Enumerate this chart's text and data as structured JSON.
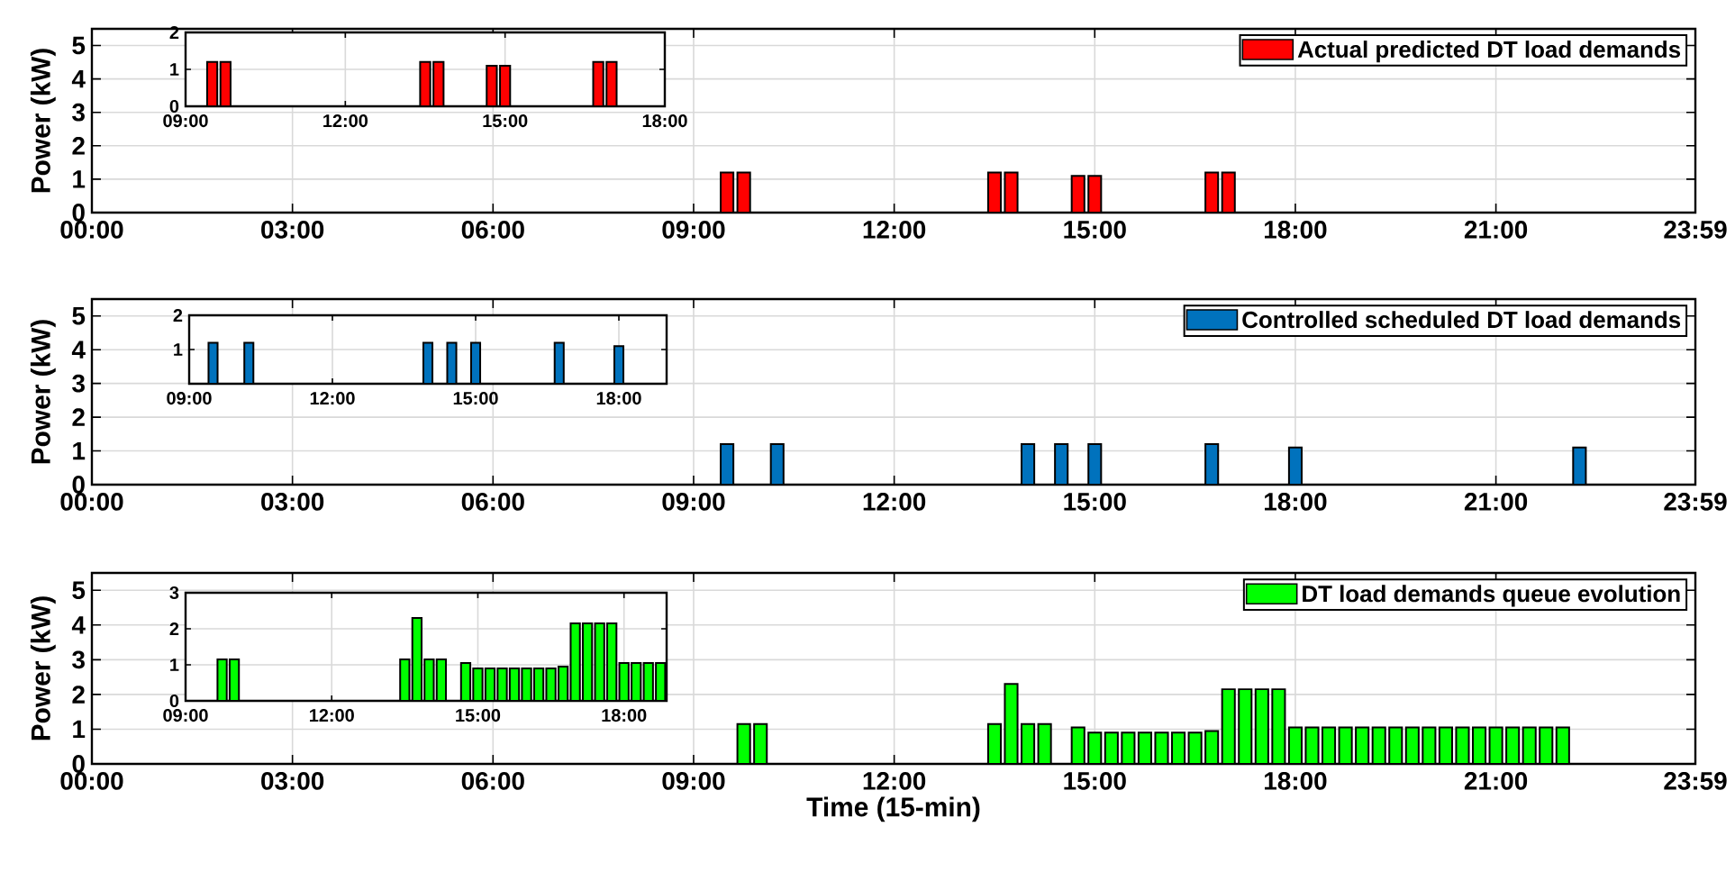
{
  "chart_data": [
    {
      "type": "bar",
      "ylabel": "Power (kW)",
      "x": [
        9.5,
        9.75,
        13.5,
        13.75,
        14.75,
        15.0,
        16.75,
        17.0
      ],
      "series": [
        {
          "name": "Actual predicted DT load demands",
          "color": "#ff0000",
          "values": [
            1.2,
            1.2,
            1.2,
            1.2,
            1.1,
            1.1,
            1.2,
            1.2
          ]
        }
      ],
      "xlim": [
        0,
        23.9833
      ],
      "xticks": [
        {
          "value": 0,
          "label": "00:00"
        },
        {
          "value": 3,
          "label": "03:00"
        },
        {
          "value": 6,
          "label": "06:00"
        },
        {
          "value": 9,
          "label": "09:00"
        },
        {
          "value": 12,
          "label": "12:00"
        },
        {
          "value": 15,
          "label": "15:00"
        },
        {
          "value": 18,
          "label": "18:00"
        },
        {
          "value": 21,
          "label": "21:00"
        },
        {
          "value": 23.9833,
          "label": "23:59"
        }
      ],
      "ylim": [
        0,
        5.5
      ],
      "yticks": [
        0,
        1,
        2,
        3,
        4,
        5
      ],
      "grid": true,
      "legend": "top right"
    },
    {
      "type": "bar",
      "x": [
        9.5,
        9.75,
        13.5,
        13.75,
        14.75,
        15.0,
        16.75,
        17.0
      ],
      "series": [
        {
          "color": "#ff0000",
          "values": [
            1.2,
            1.2,
            1.2,
            1.2,
            1.1,
            1.1,
            1.2,
            1.2
          ]
        }
      ],
      "xlim": [
        9,
        18
      ],
      "xticks": [
        {
          "value": 9,
          "label": "09:00"
        },
        {
          "value": 12,
          "label": "12:00"
        },
        {
          "value": 15,
          "label": "15:00"
        },
        {
          "value": 18,
          "label": "18:00"
        }
      ],
      "ylim": [
        0,
        2
      ],
      "yticks": [
        0,
        1,
        2
      ],
      "grid": true
    },
    {
      "type": "bar",
      "ylabel": "Power (kW)",
      "x": [
        9.5,
        10.25,
        14.0,
        14.5,
        15.0,
        16.75,
        18.0,
        22.25
      ],
      "series": [
        {
          "name": "Controlled scheduled DT load demands",
          "color": "#0072bd",
          "values": [
            1.2,
            1.2,
            1.2,
            1.2,
            1.2,
            1.2,
            1.1,
            1.1
          ]
        }
      ],
      "xlim": [
        0,
        23.9833
      ],
      "xticks": [
        {
          "value": 0,
          "label": "00:00"
        },
        {
          "value": 3,
          "label": "03:00"
        },
        {
          "value": 6,
          "label": "06:00"
        },
        {
          "value": 9,
          "label": "09:00"
        },
        {
          "value": 12,
          "label": "12:00"
        },
        {
          "value": 15,
          "label": "15:00"
        },
        {
          "value": 18,
          "label": "18:00"
        },
        {
          "value": 21,
          "label": "21:00"
        },
        {
          "value": 23.9833,
          "label": "23:59"
        }
      ],
      "ylim": [
        0,
        5.5
      ],
      "yticks": [
        0,
        1,
        2,
        3,
        4,
        5
      ],
      "grid": true,
      "legend": "top right"
    },
    {
      "type": "bar",
      "x": [
        9.5,
        10.25,
        14.0,
        14.5,
        15.0,
        16.75,
        18.0
      ],
      "series": [
        {
          "color": "#0072bd",
          "values": [
            1.2,
            1.2,
            1.2,
            1.2,
            1.2,
            1.2,
            1.1
          ]
        }
      ],
      "xlim": [
        9,
        19
      ],
      "xticks": [
        {
          "value": 9,
          "label": "09:00"
        },
        {
          "value": 12,
          "label": "12:00"
        },
        {
          "value": 15,
          "label": "15:00"
        },
        {
          "value": 18,
          "label": "18:00"
        }
      ],
      "ylim": [
        0,
        2
      ],
      "yticks": [
        {
          "value": 0,
          "label": null
        },
        1,
        2
      ],
      "grid": true
    },
    {
      "type": "bar",
      "xlabel": "Time (15-min)",
      "ylabel": "Power (kW)",
      "x": [
        9.75,
        10.0,
        13.5,
        13.75,
        14.0,
        14.25,
        14.75,
        15.0,
        15.25,
        15.5,
        15.75,
        16.0,
        16.25,
        16.5,
        16.75,
        17.0,
        17.25,
        17.5,
        17.75,
        18.0,
        18.25,
        18.5,
        18.75,
        19.0,
        19.25,
        19.5,
        19.75,
        20.0,
        20.25,
        20.5,
        20.75,
        21.0,
        21.25,
        21.5,
        21.75,
        22.0
      ],
      "series": [
        {
          "name": "DT load demands queue evolution",
          "color": "#00ff00",
          "values": [
            1.15,
            1.15,
            1.15,
            2.3,
            1.15,
            1.15,
            1.05,
            0.9,
            0.9,
            0.9,
            0.9,
            0.9,
            0.9,
            0.9,
            0.95,
            2.15,
            2.15,
            2.15,
            2.15,
            1.05,
            1.05,
            1.05,
            1.05,
            1.05,
            1.05,
            1.05,
            1.05,
            1.05,
            1.05,
            1.05,
            1.05,
            1.05,
            1.05,
            1.05,
            1.05,
            1.05
          ]
        }
      ],
      "xlim": [
        0,
        23.9833
      ],
      "xticks": [
        {
          "value": 0,
          "label": "00:00"
        },
        {
          "value": 3,
          "label": "03:00"
        },
        {
          "value": 6,
          "label": "06:00"
        },
        {
          "value": 9,
          "label": "09:00"
        },
        {
          "value": 12,
          "label": "12:00"
        },
        {
          "value": 15,
          "label": "15:00"
        },
        {
          "value": 18,
          "label": "18:00"
        },
        {
          "value": 21,
          "label": "21:00"
        },
        {
          "value": 23.9833,
          "label": "23:59"
        }
      ],
      "ylim": [
        0,
        5.5
      ],
      "yticks": [
        0,
        1,
        2,
        3,
        4,
        5
      ],
      "grid": true,
      "legend": "top right"
    },
    {
      "type": "bar",
      "x": [
        9.75,
        10.0,
        13.5,
        13.75,
        14.0,
        14.25,
        14.75,
        15.0,
        15.25,
        15.5,
        15.75,
        16.0,
        16.25,
        16.5,
        16.75,
        17.0,
        17.25,
        17.5,
        17.75,
        18.0,
        18.25,
        18.5,
        18.75
      ],
      "series": [
        {
          "color": "#00ff00",
          "values": [
            1.15,
            1.15,
            1.15,
            2.3,
            1.15,
            1.15,
            1.05,
            0.9,
            0.9,
            0.9,
            0.9,
            0.9,
            0.9,
            0.9,
            0.95,
            2.15,
            2.15,
            2.15,
            2.15,
            1.05,
            1.05,
            1.05,
            1.05
          ]
        }
      ],
      "xlim": [
        9,
        18.875
      ],
      "xticks": [
        {
          "value": 9,
          "label": "09:00"
        },
        {
          "value": 12,
          "label": "12:00"
        },
        {
          "value": 15,
          "label": "15:00"
        },
        {
          "value": 18,
          "label": "18:00"
        }
      ],
      "ylim": [
        0,
        3
      ],
      "yticks": [
        0,
        1,
        2,
        3
      ],
      "grid": true
    }
  ]
}
